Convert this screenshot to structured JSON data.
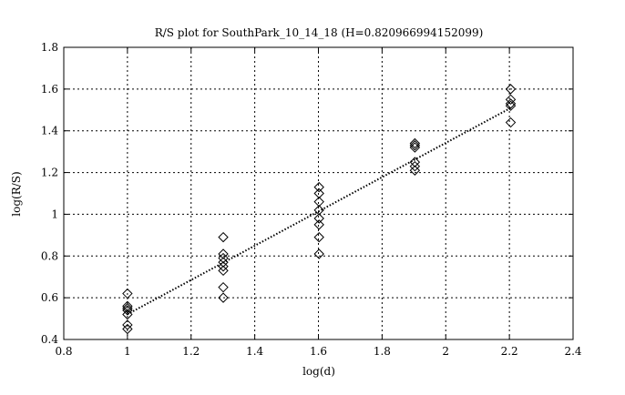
{
  "chart_data": {
    "type": "scatter",
    "title": "R/S plot for SouthPark_10_14_18 (H=0.820966994152099)",
    "xlabel": "log(d)",
    "ylabel": "log(R/S)",
    "xlim": [
      0.8,
      2.4
    ],
    "ylim": [
      0.4,
      1.8
    ],
    "xticks": [
      "0.8",
      "1",
      "1.2",
      "1.4",
      "1.6",
      "1.8",
      "2",
      "2.2",
      "2.4"
    ],
    "yticks": [
      "0.4",
      "0.6",
      "0.8",
      "1",
      "1.2",
      "1.4",
      "1.6",
      "1.8"
    ],
    "grid": true,
    "marker": "diamond",
    "points": [
      [
        1.0,
        0.62
      ],
      [
        1.0,
        0.56
      ],
      [
        1.0,
        0.55
      ],
      [
        1.0,
        0.54
      ],
      [
        1.0,
        0.52
      ],
      [
        1.0,
        0.47
      ],
      [
        1.0,
        0.45
      ],
      [
        1.301,
        0.89
      ],
      [
        1.301,
        0.81
      ],
      [
        1.301,
        0.79
      ],
      [
        1.301,
        0.77
      ],
      [
        1.301,
        0.75
      ],
      [
        1.301,
        0.73
      ],
      [
        1.301,
        0.65
      ],
      [
        1.301,
        0.6
      ],
      [
        1.602,
        1.13
      ],
      [
        1.602,
        1.1
      ],
      [
        1.602,
        1.06
      ],
      [
        1.602,
        1.02
      ],
      [
        1.602,
        0.98
      ],
      [
        1.602,
        0.95
      ],
      [
        1.602,
        0.89
      ],
      [
        1.602,
        0.81
      ],
      [
        1.903,
        1.34
      ],
      [
        1.903,
        1.33
      ],
      [
        1.903,
        1.32
      ],
      [
        1.903,
        1.25
      ],
      [
        1.903,
        1.23
      ],
      [
        1.903,
        1.21
      ],
      [
        2.204,
        1.6
      ],
      [
        2.204,
        1.55
      ],
      [
        2.204,
        1.53
      ],
      [
        2.204,
        1.52
      ],
      [
        2.204,
        1.44
      ]
    ],
    "fit_line": {
      "style": "dotted",
      "slope": 0.820966994152099,
      "intercept": -0.3,
      "x_range": [
        1.0,
        2.204
      ]
    }
  }
}
